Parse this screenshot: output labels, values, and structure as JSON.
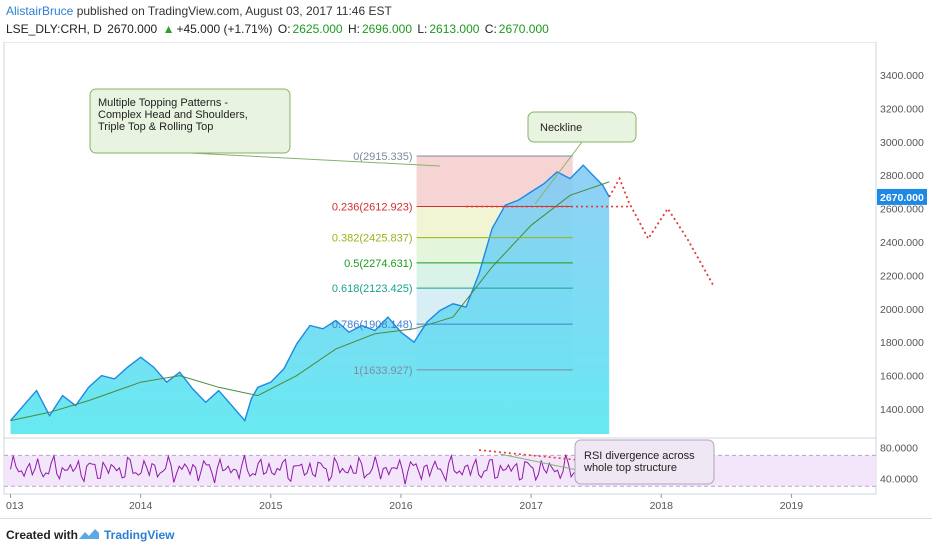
{
  "header": {
    "author": "AlistairBruce",
    "published_text": "published on TradingView.com, August 03, 2017 11:46 EST",
    "symbol": "LSE_DLY:CRH, D",
    "price": "2670.000",
    "change_arrow": "▲",
    "change": "+45.000 (+1.71%)",
    "o_label": "O:",
    "o_value": "2625.000",
    "h_label": "H:",
    "h_value": "2696.000",
    "l_label": "L:",
    "l_value": "2613.000",
    "c_label": "C:",
    "c_value": "2670.000"
  },
  "footer": {
    "created_with": "Created with",
    "brand": "TradingView"
  },
  "colors": {
    "price_line": "#1e88e5",
    "rsi_line": "#8e1aa8",
    "rsi_band": "#f3e6fb",
    "projection": "#e53935",
    "fib_red": "#d32f2f",
    "fib_yellowgreen": "#9ab318",
    "fib_green": "#1c9a1c",
    "fib_teal": "#17a38d",
    "fib_blue": "#3d7fcf",
    "fib_gray": "#7f8aa0",
    "annotation_bg": "#e8f3e0",
    "annotation_border": "#86b36a",
    "current_price_bg": "#1e88e5"
  },
  "chart_data": {
    "type": "line",
    "price_pane": {
      "ylim": [
        1250,
        3550
      ],
      "y_ticks": [
        "3400.000",
        "3200.000",
        "3000.000",
        "2800.000",
        "2600.000",
        "2400.000",
        "2200.000",
        "2000.000",
        "1800.000",
        "1600.000",
        "1400.000"
      ],
      "y_tick_values": [
        3400,
        3200,
        3000,
        2800,
        2600,
        2400,
        2200,
        2000,
        1800,
        1600,
        1400
      ],
      "current_price_label": "2670.000",
      "current_price": 2670,
      "series": [
        {
          "kind": "price",
          "x": [
            2013.0,
            2013.1,
            2013.2,
            2013.3,
            2013.4,
            2013.5,
            2013.6,
            2013.7,
            2013.8,
            2013.9,
            2014.0,
            2014.1,
            2014.2,
            2014.3,
            2014.4,
            2014.5,
            2014.6,
            2014.7,
            2014.8,
            2014.85,
            2014.9,
            2015.0,
            2015.1,
            2015.2,
            2015.3,
            2015.4,
            2015.5,
            2015.6,
            2015.7,
            2015.8,
            2015.9,
            2016.0,
            2016.1,
            2016.2,
            2016.3,
            2016.4,
            2016.5,
            2016.6,
            2016.7,
            2016.8,
            2016.9,
            2017.0,
            2017.1,
            2017.2,
            2017.3,
            2017.4,
            2017.5,
            2017.55,
            2017.6
          ],
          "y": [
            1330,
            1420,
            1510,
            1360,
            1480,
            1420,
            1530,
            1600,
            1580,
            1650,
            1710,
            1650,
            1560,
            1620,
            1520,
            1440,
            1510,
            1420,
            1330,
            1460,
            1530,
            1560,
            1640,
            1790,
            1900,
            1880,
            1930,
            1860,
            1900,
            1870,
            1950,
            1860,
            1800,
            1920,
            1990,
            2030,
            2010,
            2210,
            2480,
            2620,
            2650,
            2700,
            2750,
            2820,
            2780,
            2860,
            2780,
            2740,
            2670
          ]
        },
        {
          "kind": "moving_average",
          "x": [
            2013.0,
            2013.3,
            2013.6,
            2014.0,
            2014.3,
            2014.6,
            2014.9,
            2015.2,
            2015.5,
            2015.8,
            2016.1,
            2016.4,
            2016.7,
            2017.0,
            2017.3,
            2017.6
          ],
          "y": [
            1330,
            1380,
            1450,
            1560,
            1600,
            1530,
            1480,
            1600,
            1760,
            1850,
            1880,
            1950,
            2250,
            2500,
            2680,
            2760
          ]
        }
      ],
      "fibonacci": [
        {
          "ratio": "0",
          "label": "0(2915.335)",
          "value": 2915.335
        },
        {
          "ratio": "0.236",
          "label": "0.236(2612.923)",
          "value": 2612.923
        },
        {
          "ratio": "0.382",
          "label": "0.382(2425.837)",
          "value": 2425.837
        },
        {
          "ratio": "0.5",
          "label": "0.5(2274.631)",
          "value": 2274.631
        },
        {
          "ratio": "0.618",
          "label": "0.618(2123.425)",
          "value": 2123.425
        },
        {
          "ratio": "0.786",
          "label": "0.786(1908.148)",
          "value": 1908.148
        },
        {
          "ratio": "1",
          "label": "1(1633.927)",
          "value": 1633.927
        }
      ],
      "neckline": {
        "value": 2612,
        "x_start": 2016.5,
        "x_end": 2017.75
      },
      "projection": {
        "x": [
          2017.6,
          2017.68,
          2017.75,
          2017.9,
          2018.05,
          2018.2,
          2018.4
        ],
        "y": [
          2670,
          2780,
          2640,
          2420,
          2600,
          2420,
          2140
        ]
      }
    },
    "rsi_pane": {
      "ylim": [
        20,
        90
      ],
      "y_ticks": [
        "80.0000",
        "40.0000"
      ],
      "y_tick_values": [
        80,
        40
      ],
      "band": [
        30,
        70
      ],
      "divergence": {
        "x": [
          2016.6,
          2017.6
        ],
        "y": [
          77,
          60
        ]
      }
    },
    "x_axis": {
      "ticks": [
        "013",
        "2014",
        "2015",
        "2016",
        "2017",
        "2018",
        "2019"
      ],
      "tick_values": [
        2013.0,
        2014.0,
        2015.0,
        2016.0,
        2017.0,
        2018.0,
        2019.0
      ]
    },
    "annotations": [
      {
        "id": "topping",
        "text": [
          "Multiple Topping Patterns -",
          "Complex Head and Shoulders,",
          "Triple Top & Rolling Top"
        ]
      },
      {
        "id": "neckline",
        "text": [
          "Neckline"
        ]
      },
      {
        "id": "rsi",
        "text": [
          "RSI divergence across",
          "whole top structure"
        ]
      }
    ]
  }
}
